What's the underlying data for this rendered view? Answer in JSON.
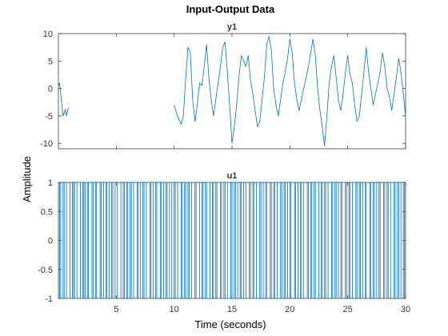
{
  "chart_data": {
    "title": "Input-Output Data",
    "ylabel": "Amplitude",
    "xlabel": "Time (seconds)",
    "xlim": [
      0,
      30
    ],
    "grid": false,
    "line_color": "#0072bd",
    "panels": [
      {
        "name": "y1",
        "type": "line",
        "ylim": [
          -11,
          10
        ],
        "yticks": [
          10,
          5,
          0,
          -5,
          -10
        ],
        "xticks": [
          5,
          10,
          15,
          20,
          25,
          30
        ],
        "show_xtick_labels": false,
        "segments": [
          {
            "x": [
              0.0,
              0.1,
              0.2,
              0.3,
              0.4,
              0.5,
              0.6,
              0.7,
              0.8,
              0.9
            ],
            "y": [
              0.5,
              1.0,
              -1.0,
              -3.0,
              -5.0,
              -4.5,
              -3.8,
              -5.0,
              -4.0,
              -3.5
            ]
          },
          {
            "x": [
              10.0,
              10.2,
              10.4,
              10.6,
              10.8,
              11.0,
              11.2,
              11.4,
              11.6,
              11.8,
              12.0,
              12.2,
              12.4,
              12.6,
              12.8,
              13.0,
              13.2,
              13.4,
              13.6,
              13.8,
              14.0,
              14.2,
              14.4,
              14.6,
              14.8,
              15.0,
              15.2,
              15.4,
              15.6,
              15.8,
              16.0,
              16.2,
              16.4,
              16.6,
              16.8,
              17.0,
              17.2,
              17.4,
              17.6,
              17.8,
              18.0,
              18.2,
              18.4,
              18.6,
              18.8,
              19.0,
              19.2,
              19.4,
              19.6,
              19.8,
              20.0,
              20.2,
              20.4,
              20.6,
              20.8,
              21.0,
              21.2,
              21.4,
              21.6,
              21.8,
              22.0,
              22.2,
              22.4,
              22.6,
              22.8,
              23.0,
              23.2,
              23.4,
              23.6,
              23.8,
              24.0,
              24.2,
              24.4,
              24.6,
              24.8,
              25.0,
              25.2,
              25.4,
              25.6,
              25.8,
              26.0,
              26.2,
              26.4,
              26.6,
              26.8,
              27.0,
              27.2,
              27.4,
              27.6,
              27.8,
              28.0,
              28.2,
              28.4,
              28.6,
              28.8,
              29.0,
              29.2,
              29.4,
              29.6,
              29.8,
              30.0
            ],
            "y": [
              -3.0,
              -4.5,
              -5.5,
              -6.5,
              -5.0,
              2.0,
              7.5,
              6.5,
              -2.0,
              -6.0,
              -3.0,
              1.0,
              0.5,
              4.0,
              8.0,
              2.0,
              -2.0,
              -5.0,
              -2.0,
              1.0,
              4.0,
              7.5,
              8.5,
              3.0,
              -3.0,
              -10.0,
              -7.0,
              -3.0,
              2.0,
              6.0,
              5.0,
              4.0,
              6.0,
              1.5,
              -1.0,
              -4.0,
              -7.0,
              -6.0,
              -2.0,
              2.0,
              8.0,
              9.5,
              7.0,
              0.0,
              -3.0,
              -5.0,
              -2.0,
              1.0,
              3.0,
              5.5,
              9.0,
              6.5,
              1.0,
              -2.0,
              -4.0,
              -2.0,
              0.0,
              2.0,
              4.0,
              6.5,
              9.0,
              6.0,
              0.0,
              -4.0,
              -7.0,
              -10.5,
              -5.0,
              1.0,
              4.0,
              6.0,
              2.0,
              -2.0,
              -4.0,
              -1.0,
              3.0,
              6.0,
              2.5,
              1.0,
              -3.0,
              -6.0,
              -5.0,
              -1.0,
              3.0,
              7.5,
              3.0,
              0.0,
              -3.0,
              -1.0,
              1.0,
              3.0,
              6.5,
              4.0,
              0.0,
              -1.5,
              -4.0,
              -1.0,
              2.0,
              5.5,
              3.0,
              -1.0,
              -5.0
            ]
          }
        ]
      },
      {
        "name": "u1",
        "type": "line",
        "ylim": [
          -1,
          1
        ],
        "yticks": [
          1,
          0.5,
          0,
          -0.5,
          -1
        ],
        "ytick_labels": [
          "1",
          "0.5",
          "0",
          "-0.5",
          "-1"
        ],
        "xticks": [
          5,
          10,
          15,
          20,
          25,
          30
        ],
        "show_xtick_labels": true,
        "step": 0.1,
        "levels": [
          -1,
          1
        ],
        "switch_times": [
          0.1,
          0.2,
          0.4,
          0.5,
          0.7,
          1.0,
          1.2,
          1.3,
          1.4,
          1.6,
          1.9,
          2.1,
          2.2,
          2.3,
          2.5,
          2.6,
          2.9,
          3.0,
          3.2,
          3.3,
          3.6,
          3.7,
          3.9,
          4.1,
          4.2,
          4.4,
          4.6,
          4.7,
          4.9,
          5.1,
          5.4,
          5.6,
          5.7,
          5.9,
          6.0,
          6.2,
          6.3,
          6.5,
          6.8,
          6.9,
          7.1,
          7.3,
          7.4,
          7.6,
          7.9,
          8.0,
          8.2,
          8.4,
          8.5,
          8.8,
          8.9,
          9.1,
          9.3,
          9.4,
          9.6,
          9.8,
          10.0,
          10.1,
          10.3,
          10.6,
          10.7,
          10.9,
          11.0,
          11.2,
          11.3,
          11.5,
          11.8,
          11.9,
          12.2,
          12.4,
          12.5,
          12.7,
          12.8,
          13.1,
          13.3,
          13.4,
          13.6,
          13.7,
          14.0,
          14.1,
          14.3,
          14.4,
          14.6,
          14.9,
          15.0,
          15.2,
          15.3,
          15.5,
          15.7,
          15.8,
          16.0,
          16.2,
          16.5,
          16.6,
          16.8,
          16.9,
          17.1,
          17.4,
          17.5,
          17.7,
          17.9,
          18.0,
          18.3,
          18.4,
          18.6,
          18.7,
          18.9,
          19.2,
          19.3,
          19.5,
          19.6,
          19.8,
          20.0,
          20.1,
          20.4,
          20.5,
          20.7,
          20.9,
          21.0,
          21.2,
          21.5,
          21.6,
          21.8,
          21.9,
          22.1,
          22.2,
          22.5,
          22.7,
          22.8,
          23.0,
          23.1,
          23.3,
          23.6,
          23.7,
          23.9,
          24.0,
          24.2,
          24.4,
          24.5,
          24.8,
          24.9,
          25.1,
          25.2,
          25.4,
          25.7,
          25.8,
          26.0,
          26.1,
          26.3,
          26.5,
          26.6,
          26.9,
          27.0,
          27.2,
          27.3,
          27.5,
          27.7,
          27.8,
          28.1,
          28.2,
          28.4,
          28.5,
          28.7,
          29.0,
          29.1,
          29.3,
          29.4,
          29.6,
          29.8,
          29.9
        ]
      }
    ]
  }
}
